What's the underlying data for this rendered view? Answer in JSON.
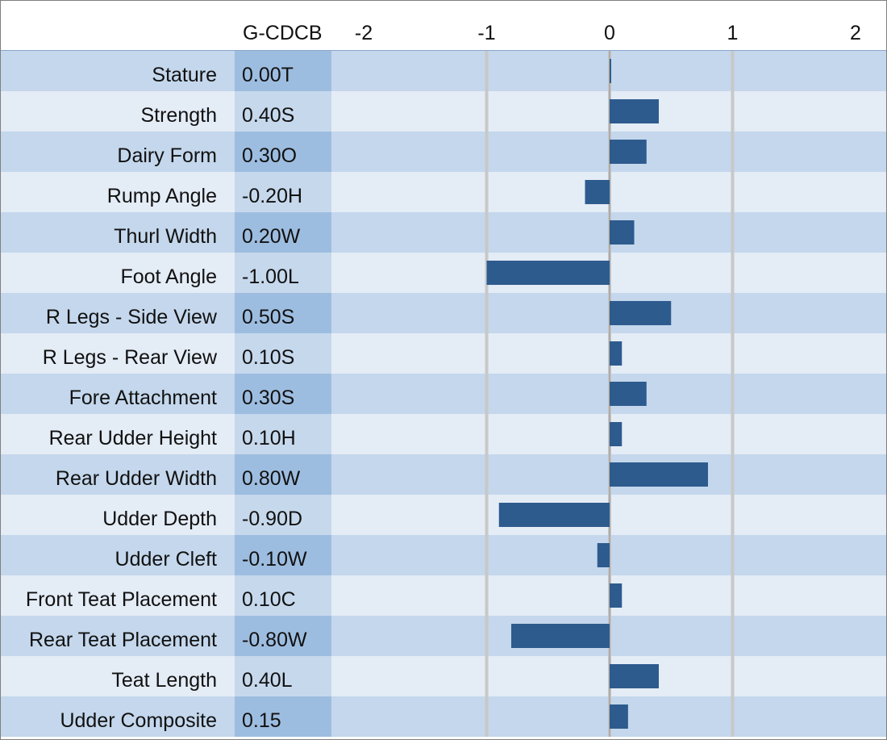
{
  "chart_data": {
    "type": "bar",
    "orientation": "horizontal",
    "column_header": "G-CDCB",
    "xlim": [
      -2,
      2
    ],
    "x_ticks": [
      "-2",
      "-1",
      "0",
      "1",
      "2"
    ],
    "gridlines": "vertical at -1, 0, 1",
    "bar_color": "#2e5b8e",
    "row_colors": [
      "#c4d7ec",
      "#e4ecf6"
    ],
    "score_column_colors": [
      "#9dbde0",
      "#c6d8ec"
    ],
    "categories": [
      "Stature",
      "Strength",
      "Dairy Form",
      "Rump Angle",
      "Thurl Width",
      "Foot Angle",
      "R Legs - Side View",
      "R Legs - Rear View",
      "Fore Attachment",
      "Rear Udder Height",
      "Rear Udder Width",
      "Udder Depth",
      "Udder Cleft",
      "Front Teat Placement",
      "Rear Teat Placement",
      "Teat Length",
      "Udder Composite"
    ],
    "score_labels": [
      "0.00T",
      "0.40S",
      "0.30O",
      "-0.20H",
      "0.20W",
      "-1.00L",
      "0.50S",
      "0.10S",
      "0.30S",
      "0.10H",
      "0.80W",
      "-0.90D",
      "-0.10W",
      "0.10C",
      "-0.80W",
      "0.40L",
      "0.15"
    ],
    "values": [
      0.0,
      0.4,
      0.3,
      -0.2,
      0.2,
      -1.0,
      0.5,
      0.1,
      0.3,
      0.1,
      0.8,
      -0.9,
      -0.1,
      0.1,
      -0.8,
      0.4,
      0.15
    ]
  }
}
